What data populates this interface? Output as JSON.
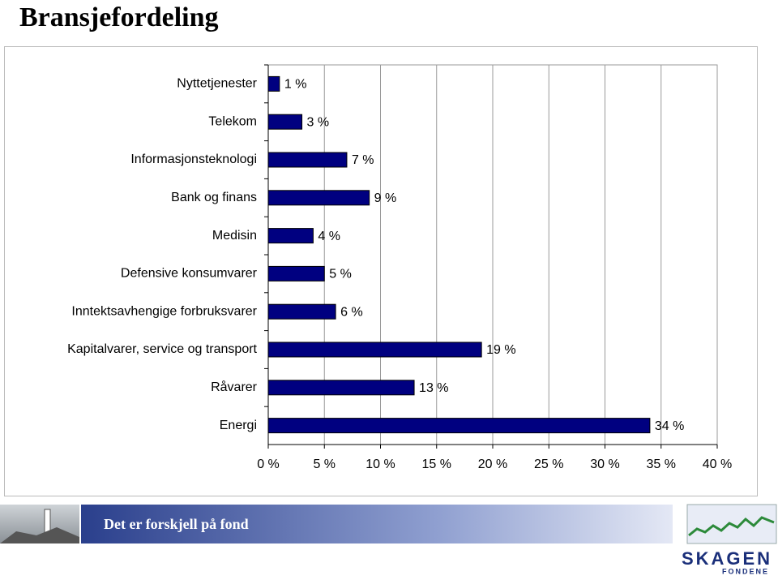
{
  "chart_data": {
    "type": "bar",
    "orientation": "horizontal",
    "title": "Bransjefordeling",
    "categories": [
      "Nyttetjenester",
      "Telekom",
      "Informasjonsteknologi",
      "Bank og finans",
      "Medisin",
      "Defensive konsumvarer",
      "Inntektsavhengige forbruksvarer",
      "Kapitalvarer, service og transport",
      "Råvarer",
      "Energi"
    ],
    "values": [
      1,
      3,
      7,
      9,
      4,
      5,
      6,
      19,
      13,
      34
    ],
    "value_labels": [
      "1 %",
      "3 %",
      "7 %",
      "9 %",
      "4 %",
      "5 %",
      "6 %",
      "19 %",
      "13 %",
      "34 %"
    ],
    "color": "#000080",
    "xlim": [
      0,
      40
    ],
    "xticks": [
      {
        "value": 0,
        "label": "0 %"
      },
      {
        "value": 5,
        "label": "5 %"
      },
      {
        "value": 10,
        "label": "10 %"
      },
      {
        "value": 15,
        "label": "15 %"
      },
      {
        "value": 20,
        "label": "20 %"
      },
      {
        "value": 25,
        "label": "25 %"
      },
      {
        "value": 30,
        "label": "30 %"
      },
      {
        "value": 35,
        "label": "35 %"
      },
      {
        "value": 40,
        "label": "40 %"
      }
    ],
    "grid": true
  },
  "footer": {
    "slogan": "Det er forskjell på fond",
    "brand": "SKAGEN",
    "brand_sub": "FONDENE"
  }
}
